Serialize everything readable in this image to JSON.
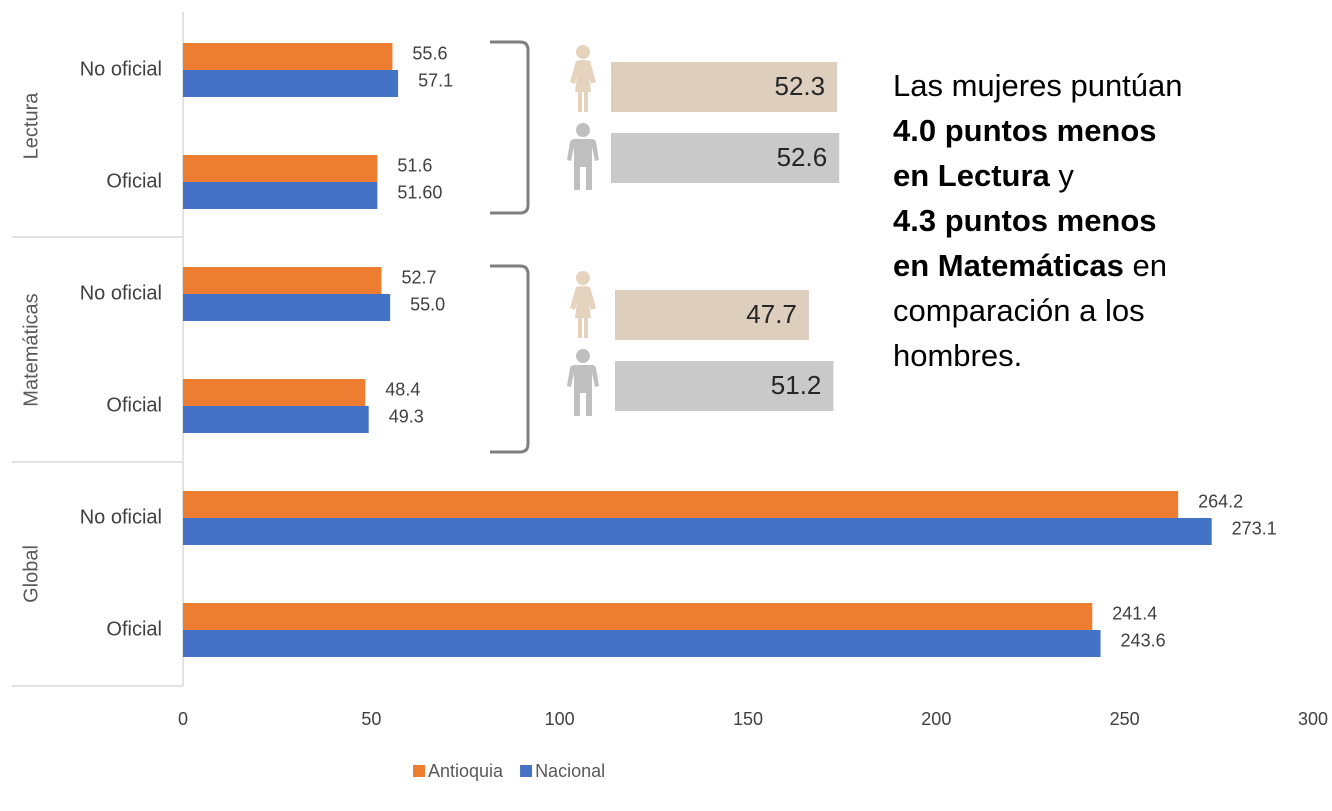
{
  "chart_data": {
    "type": "bar",
    "orientation": "horizontal",
    "groups": [
      "Lectura",
      "Matemáticas",
      "Global"
    ],
    "categories": [
      "No oficial",
      "Oficial",
      "No oficial",
      "Oficial",
      "No oficial",
      "Oficial"
    ],
    "series": [
      {
        "name": "Antioquia",
        "color": "#ED7D31",
        "values": [
          55.6,
          51.6,
          52.7,
          48.4,
          264.2,
          241.4
        ],
        "value_labels": [
          "55.6",
          "51.6",
          "52.7",
          "48.4",
          "264.2",
          "241.4"
        ]
      },
      {
        "name": "Nacional",
        "color": "#4472C4",
        "values": [
          57.1,
          51.6,
          55.0,
          49.3,
          273.1,
          243.6
        ],
        "value_labels": [
          "57.1",
          "51.60",
          "55.0",
          "49.3",
          "273.1",
          "243.6"
        ]
      }
    ],
    "xlim": [
      0,
      300
    ],
    "xticks": [
      0,
      50,
      100,
      150,
      200,
      250,
      300
    ],
    "legend": "bottom",
    "gender": {
      "series": [
        {
          "color": "#DDCEBD",
          "values": [
            52.3,
            47.7
          ]
        },
        {
          "color": "#C9C9C9",
          "values": [
            52.6,
            51.2
          ]
        }
      ]
    },
    "annotation": [
      [
        {
          "text": "Las mujeres puntúan"
        }
      ],
      [
        {
          "text": "4.0 puntos menos",
          "bold": true
        }
      ],
      [
        {
          "text": "en Lectura",
          "bold": true
        },
        {
          "text": "y"
        }
      ],
      [
        {
          "text": "4.3 puntos menos",
          "bold": true
        }
      ],
      [
        {
          "text": "en Matemáticas",
          "bold": true
        },
        {
          "text": "en"
        }
      ],
      [
        {
          "text": "comparación a los"
        }
      ],
      [
        {
          "text": "hombres."
        }
      ]
    ]
  }
}
